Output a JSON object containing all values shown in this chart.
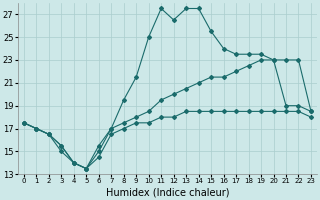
{
  "title": "",
  "xlabel": "Humidex (Indice chaleur)",
  "background_color": "#cde8e8",
  "grid_color": "#aacece",
  "line_color": "#1a6b6b",
  "xlim": [
    -0.5,
    23.5
  ],
  "ylim": [
    13,
    28
  ],
  "yticks": [
    13,
    15,
    17,
    19,
    21,
    23,
    25,
    27
  ],
  "xticks": [
    0,
    1,
    2,
    3,
    4,
    5,
    6,
    7,
    8,
    9,
    10,
    11,
    12,
    13,
    14,
    15,
    16,
    17,
    18,
    19,
    20,
    21,
    22,
    23
  ],
  "series_bottom": {
    "x": [
      0,
      1,
      2,
      3,
      4,
      5,
      6,
      7,
      8,
      9,
      10,
      11,
      12,
      13,
      14,
      15,
      16,
      17,
      18,
      19,
      20,
      21,
      22,
      23
    ],
    "y": [
      17.5,
      17.0,
      16.5,
      15.5,
      14.0,
      13.5,
      14.5,
      16.5,
      17.0,
      17.5,
      17.5,
      18.0,
      18.0,
      18.5,
      18.5,
      18.5,
      18.5,
      18.5,
      18.5,
      18.5,
      18.5,
      18.5,
      18.5,
      18.0
    ]
  },
  "series_middle": {
    "x": [
      0,
      1,
      2,
      3,
      4,
      5,
      6,
      7,
      8,
      9,
      10,
      11,
      12,
      13,
      14,
      15,
      16,
      17,
      18,
      19,
      20,
      21,
      22,
      23
    ],
    "y": [
      17.5,
      17.0,
      16.5,
      15.5,
      14.0,
      13.5,
      15.0,
      17.0,
      17.5,
      18.0,
      18.5,
      19.5,
      20.0,
      20.5,
      21.0,
      21.5,
      21.5,
      22.0,
      22.5,
      23.0,
      23.0,
      19.0,
      19.0,
      18.5
    ]
  },
  "series_top": {
    "x": [
      0,
      1,
      2,
      3,
      4,
      5,
      6,
      7,
      8,
      9,
      10,
      11,
      12,
      13,
      14,
      15,
      16,
      17,
      18,
      19,
      20,
      21,
      22,
      23
    ],
    "y": [
      17.5,
      17.0,
      16.5,
      15.0,
      14.0,
      13.5,
      15.5,
      17.0,
      19.5,
      21.5,
      25.0,
      27.5,
      26.5,
      27.5,
      27.5,
      25.5,
      24.0,
      23.5,
      23.5,
      23.5,
      23.0,
      23.0,
      23.0,
      18.5
    ]
  }
}
